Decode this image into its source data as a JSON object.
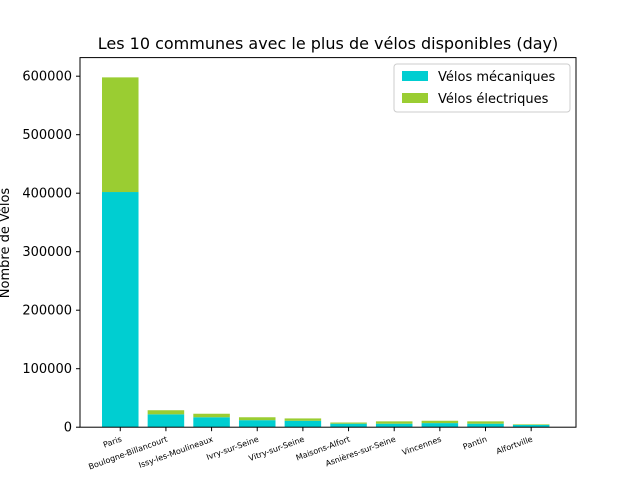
{
  "chart_data": {
    "type": "bar",
    "stacked": true,
    "title": "Les 10 communes avec le plus de vélos disponibles (day)",
    "xlabel": "",
    "ylabel": "Nombre de Vélos",
    "ylim": [
      0,
      600000
    ],
    "yticks": [
      "0",
      "100000",
      "200000",
      "300000",
      "400000",
      "500000",
      "600000"
    ],
    "legend_position": "top-right",
    "grid": false,
    "categories": [
      "Paris",
      "Boulogne-Billancourt",
      "Issy-les-Moulineaux",
      "Ivry-sur-Seine",
      "Vitry-sur-Seine",
      "Maisons-Alfort",
      "Asnières-sur-Seine",
      "Vincennes",
      "Pantin",
      "Alfortville"
    ],
    "series": [
      {
        "name": "Vélos mécaniques",
        "color": "#00ced1",
        "values": [
          402000,
          22000,
          17000,
          12000,
          11000,
          6000,
          6000,
          7000,
          6000,
          4000
        ]
      },
      {
        "name": "Vélos électriques",
        "color": "#9acd32",
        "values": [
          196000,
          7000,
          6000,
          5000,
          4000,
          2000,
          4000,
          4000,
          4000,
          1000
        ]
      }
    ]
  }
}
